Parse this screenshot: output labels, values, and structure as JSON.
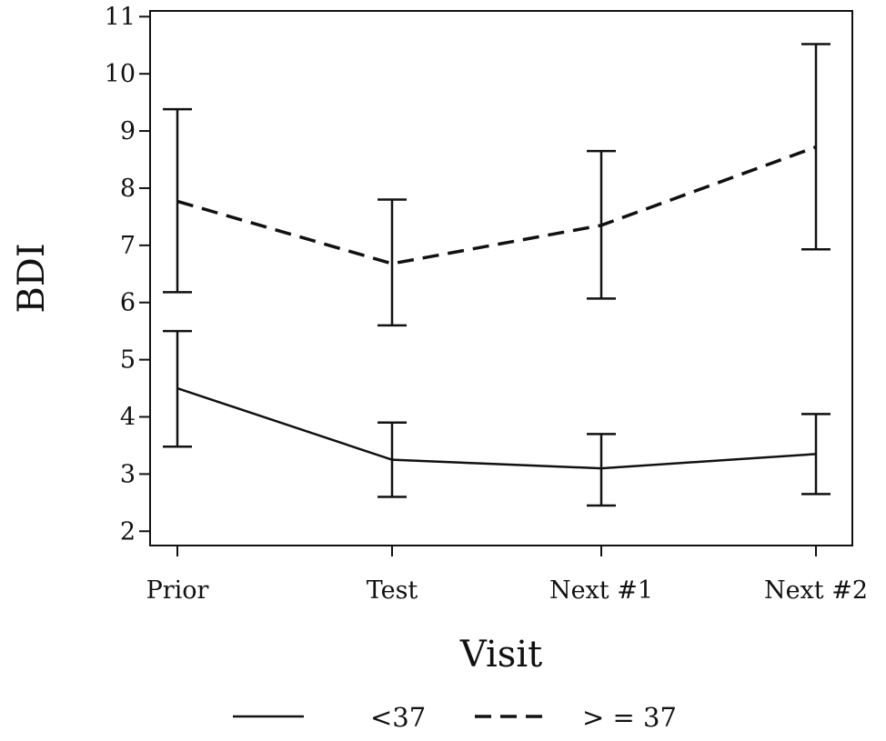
{
  "chart_data": {
    "type": "line",
    "title": "",
    "xlabel": "Visit",
    "ylabel": "BDI",
    "categories": [
      "Prior",
      "Test",
      "Next #1",
      "Next #2"
    ],
    "ylim": [
      1.75,
      11.1
    ],
    "yticks": [
      2,
      3,
      4,
      5,
      6,
      7,
      8,
      9,
      10,
      11
    ],
    "grid": false,
    "legend_position": "bottom",
    "series": [
      {
        "name": "<37",
        "line_style": "solid",
        "color": "#111111",
        "values": [
          4.5,
          3.25,
          3.1,
          3.35
        ],
        "lower": [
          3.48,
          2.6,
          2.45,
          2.65
        ],
        "upper": [
          5.5,
          3.9,
          3.7,
          4.05
        ]
      },
      {
        "name": "> = 37",
        "line_style": "dashed",
        "color": "#111111",
        "values": [
          7.77,
          6.68,
          7.35,
          8.72
        ],
        "lower": [
          6.18,
          5.6,
          6.07,
          6.93
        ],
        "upper": [
          9.38,
          7.8,
          8.65,
          10.52
        ]
      }
    ]
  }
}
